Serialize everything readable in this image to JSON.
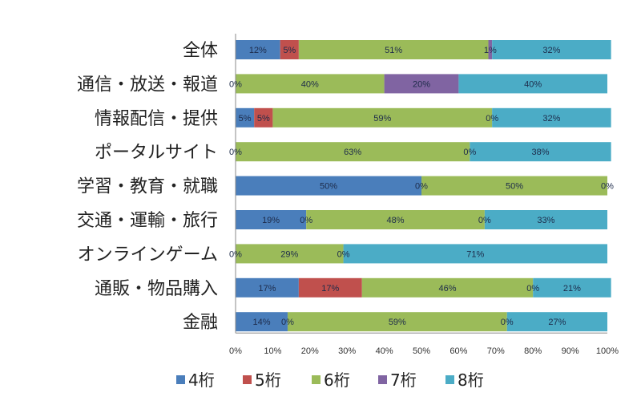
{
  "chart_data": {
    "type": "bar",
    "orientation": "horizontal",
    "stacked": "percent",
    "title": "",
    "xlabel": "",
    "ylabel": "",
    "xlim": [
      0,
      100
    ],
    "x_ticks": [
      "0%",
      "10%",
      "20%",
      "30%",
      "40%",
      "50%",
      "60%",
      "70%",
      "80%",
      "90%",
      "100%"
    ],
    "grid": false,
    "legend_position": "bottom",
    "categories": [
      "全体",
      "通信・放送・報道",
      "情報配信・提供",
      "ポータルサイト",
      "学習・教育・就職",
      "交通・運輸・旅行",
      "オンラインゲーム",
      "通販・物品購入",
      "金融"
    ],
    "series": [
      {
        "name": "4桁",
        "color": "#4a7ebb",
        "values": [
          12,
          0,
          5,
          0,
          50,
          19,
          0,
          17,
          14
        ],
        "labels": [
          "12%",
          "0%",
          "5%",
          "0%",
          "50%",
          "19%",
          "0%",
          "17%",
          "14%"
        ]
      },
      {
        "name": "5桁",
        "color": "#c0504d",
        "values": [
          5,
          0,
          5,
          0,
          0,
          0,
          0,
          17,
          0
        ],
        "labels": [
          "5%",
          "",
          "5%",
          "",
          "0%",
          "0%",
          "",
          "17%",
          "0%"
        ]
      },
      {
        "name": "6桁",
        "color": "#9bbb59",
        "values": [
          51,
          40,
          59,
          63,
          50,
          48,
          29,
          46,
          59
        ],
        "labels": [
          "51%",
          "40%",
          "59%",
          "63%",
          "50%",
          "48%",
          "29%",
          "46%",
          "59%"
        ]
      },
      {
        "name": "7桁",
        "color": "#8064a2",
        "values": [
          1,
          20,
          0,
          0,
          0,
          0,
          0,
          0,
          0
        ],
        "labels": [
          "1%",
          "20%",
          "0%",
          "0%",
          "",
          "0%",
          "0%",
          "0%",
          "0%"
        ]
      },
      {
        "name": "8桁",
        "color": "#4bacc6",
        "values": [
          32,
          40,
          32,
          38,
          0,
          33,
          71,
          21,
          27
        ],
        "labels": [
          "32%",
          "40%",
          "32%",
          "38%",
          "0%",
          "33%",
          "71%",
          "21%",
          "27%"
        ]
      }
    ]
  }
}
